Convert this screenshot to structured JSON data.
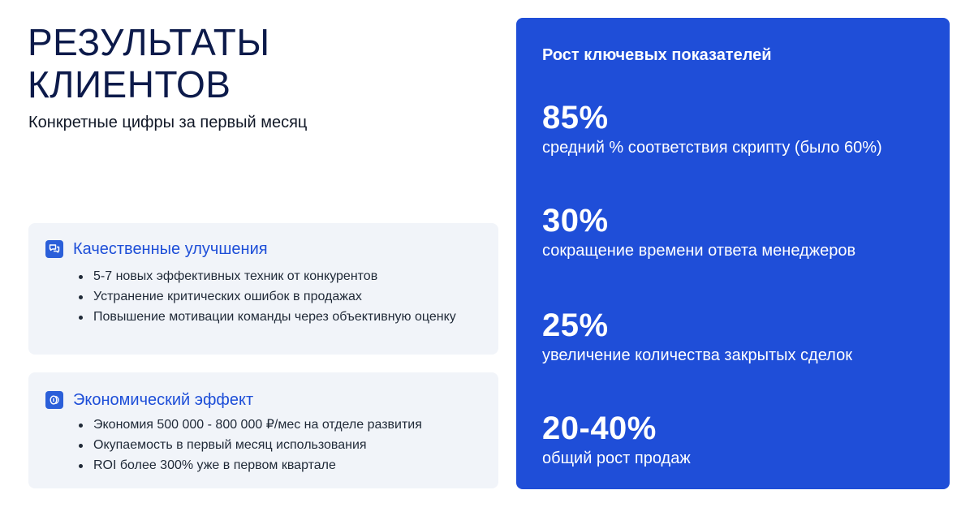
{
  "header": {
    "title": "РЕЗУЛЬТАТЫ КЛИЕНТОВ",
    "subtitle": "Конкретные цифры за первый месяц"
  },
  "cards": [
    {
      "icon": "chat-bubbles-icon",
      "title": "Качественные улучшения",
      "items": [
        "5-7 новых эффективных техник от конкурентов",
        "Устранение критических ошибок в продажах",
        "Повышение мотивации команды через объективную оценку"
      ]
    },
    {
      "icon": "coins-icon",
      "title": "Экономический эффект",
      "items": [
        "Экономия 500 000 - 800 000 ₽/мес на отделе развития",
        "Окупаемость в первый месяц использования",
        "ROI более 300% уже в первом квартале"
      ]
    }
  ],
  "panel": {
    "title": "Рост ключевых показателей",
    "metrics": [
      {
        "value": "85%",
        "label": "средний % соответствия скрипту (было 60%)"
      },
      {
        "value": "30%",
        "label": "сокращение времени ответа менеджеров"
      },
      {
        "value": "25%",
        "label": "увеличение количества закрытых сделок"
      },
      {
        "value": "20-40%",
        "label": "общий рост продаж"
      }
    ]
  },
  "colors": {
    "panel_bg": "#1f4ed8",
    "accent": "#1d4ed8",
    "title": "#0c1a4a",
    "card_bg": "#f1f4f9"
  }
}
